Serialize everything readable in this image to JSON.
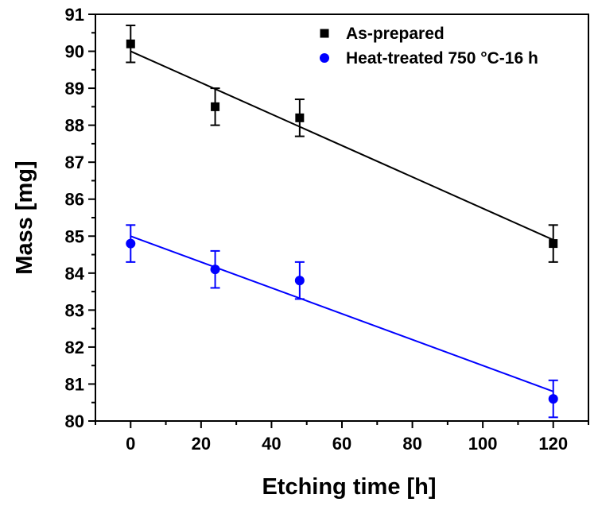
{
  "chart_data": {
    "type": "scatter",
    "xlabel": "Etching time [h]",
    "ylabel": "Mass [mg]",
    "xlim": [
      -10,
      130
    ],
    "ylim": [
      80,
      91
    ],
    "xticks": [
      0,
      20,
      40,
      60,
      80,
      100,
      120
    ],
    "yticks": [
      80,
      81,
      82,
      83,
      84,
      85,
      86,
      87,
      88,
      89,
      90,
      91
    ],
    "legend_position": "top-right",
    "grid": false,
    "series": [
      {
        "name": "As-prepared",
        "marker": "square",
        "color": "#000000",
        "x": [
          0,
          24,
          48,
          120
        ],
        "y": [
          90.2,
          88.5,
          88.2,
          84.8
        ],
        "error": [
          0.5,
          0.5,
          0.5,
          0.5
        ],
        "fit": {
          "x": [
            0,
            120
          ],
          "y": [
            90.0,
            84.9
          ]
        }
      },
      {
        "name": "Heat-treated 750 °C-16 h",
        "marker": "circle",
        "color": "#0000ff",
        "x": [
          0,
          24,
          48,
          120
        ],
        "y": [
          84.8,
          84.1,
          83.8,
          80.6
        ],
        "error": [
          0.5,
          0.5,
          0.5,
          0.5
        ],
        "fit": {
          "x": [
            0,
            120
          ],
          "y": [
            85.0,
            80.8
          ]
        }
      }
    ]
  }
}
